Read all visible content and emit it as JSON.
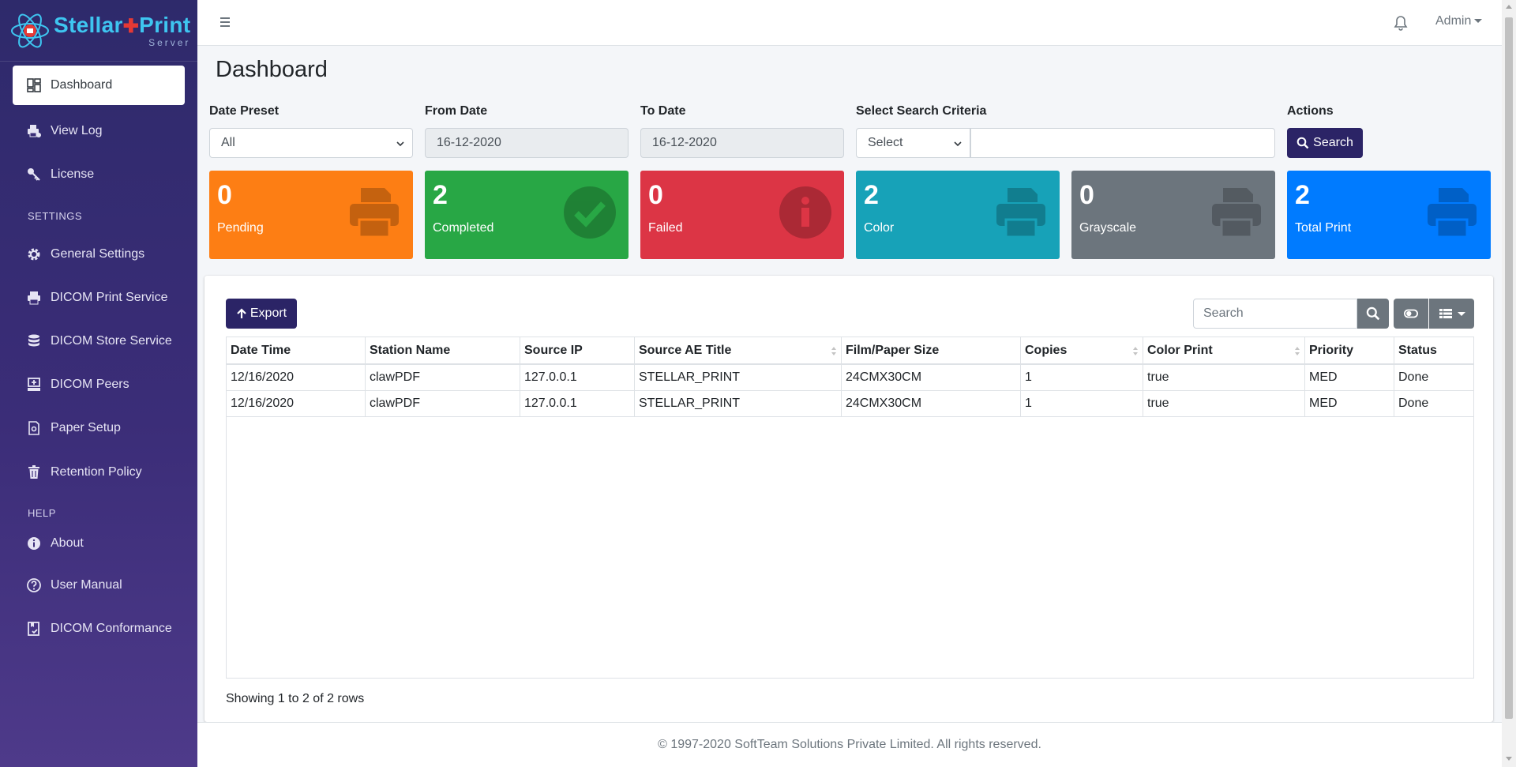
{
  "brand": {
    "name_left": "Stellar",
    "name_right": "Print",
    "sub": "Server"
  },
  "sidebar": {
    "items": [
      {
        "label": "Dashboard",
        "icon": "dashboard-icon",
        "active": true
      },
      {
        "label": "View Log",
        "icon": "printer-log-icon"
      },
      {
        "label": "License",
        "icon": "key-icon"
      },
      {
        "label": "General Settings",
        "icon": "gear-icon"
      },
      {
        "label": "DICOM Print Service",
        "icon": "printer-icon"
      },
      {
        "label": "DICOM Store Service",
        "icon": "database-icon"
      },
      {
        "label": "DICOM Peers",
        "icon": "network-peers-icon"
      },
      {
        "label": "Paper Setup",
        "icon": "paper-icon"
      },
      {
        "label": "Retention Policy",
        "icon": "trash-icon"
      },
      {
        "label": "About",
        "icon": "info-icon"
      },
      {
        "label": "User Manual",
        "icon": "question-icon"
      },
      {
        "label": "DICOM Conformance",
        "icon": "book-check-icon"
      }
    ],
    "settings_header": "SETTINGS",
    "help_header": "HELP"
  },
  "topbar": {
    "user": "Admin"
  },
  "page": {
    "title": "Dashboard"
  },
  "filters": {
    "date_preset_label": "Date Preset",
    "date_preset_value": "All",
    "from_label": "From Date",
    "from_value": "16-12-2020",
    "to_label": "To Date",
    "to_value": "16-12-2020",
    "criteria_label": "Select Search Criteria",
    "criteria_value": "Select",
    "criteria_text": "",
    "actions_label": "Actions",
    "search_button": "Search"
  },
  "stats": [
    {
      "value": "0",
      "label": "Pending",
      "color": "#fd7e14",
      "icon": "printer-icon"
    },
    {
      "value": "2",
      "label": "Completed",
      "color": "#28a745",
      "icon": "check-circle-icon"
    },
    {
      "value": "0",
      "label": "Failed",
      "color": "#dc3545",
      "icon": "info-circle-icon"
    },
    {
      "value": "2",
      "label": "Color",
      "color": "#17a2b8",
      "icon": "printer-icon"
    },
    {
      "value": "0",
      "label": "Grayscale",
      "color": "#6c757d",
      "icon": "printer-icon"
    },
    {
      "value": "2",
      "label": "Total Print",
      "color": "#007bff",
      "icon": "printer-icon"
    }
  ],
  "table": {
    "export_label": "Export",
    "search_placeholder": "Search",
    "columns": [
      "Date Time",
      "Station Name",
      "Source IP",
      "Source AE Title",
      "Film/Paper Size",
      "Copies",
      "Color Print",
      "Priority",
      "Status"
    ],
    "rows": [
      [
        "12/16/2020",
        "clawPDF",
        "127.0.0.1",
        "STELLAR_PRINT",
        "24CMX30CM",
        "1",
        "true",
        "MED",
        "Done"
      ],
      [
        "12/16/2020",
        "clawPDF",
        "127.0.0.1",
        "STELLAR_PRINT",
        "24CMX30CM",
        "1",
        "true",
        "MED",
        "Done"
      ]
    ],
    "showing": "Showing 1 to 2 of 2 rows"
  },
  "footer": "© 1997-2020 SoftTeam Solutions Private Limited. All rights reserved."
}
